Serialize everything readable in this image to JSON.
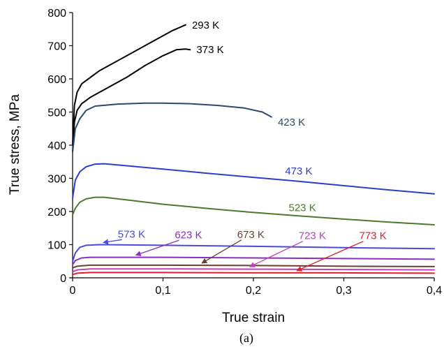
{
  "chart_data": {
    "type": "line",
    "xlabel": "True strain",
    "ylabel": "True stress, MPa",
    "caption": "(a)",
    "xlim": [
      0,
      0.4
    ],
    "ylim": [
      0,
      800
    ],
    "xticks": [
      "0",
      "0,1",
      "0,2",
      "0,3",
      "0,4"
    ],
    "yticks": [
      "0",
      "100",
      "200",
      "300",
      "400",
      "500",
      "600",
      "700",
      "800"
    ],
    "grid": false,
    "legend": "none",
    "series": [
      {
        "name": "293 K",
        "color": "#000000",
        "x": [
          0,
          0.002,
          0.005,
          0.01,
          0.02,
          0.03,
          0.05,
          0.07,
          0.09,
          0.11,
          0.125
        ],
        "y": [
          400,
          520,
          560,
          585,
          605,
          625,
          655,
          685,
          715,
          745,
          763
        ]
      },
      {
        "name": "373 K",
        "color": "#000000",
        "x": [
          0,
          0.002,
          0.005,
          0.01,
          0.02,
          0.04,
          0.06,
          0.08,
          0.1,
          0.115,
          0.125,
          0.13
        ],
        "y": [
          380,
          470,
          505,
          525,
          545,
          575,
          605,
          640,
          670,
          688,
          690,
          688
        ]
      },
      {
        "name": "423 K",
        "color": "#2a4a6e",
        "x": [
          0,
          0.003,
          0.008,
          0.015,
          0.025,
          0.05,
          0.08,
          0.1,
          0.13,
          0.16,
          0.19,
          0.21,
          0.22
        ],
        "y": [
          380,
          450,
          480,
          505,
          518,
          524,
          527,
          527,
          525,
          520,
          512,
          500,
          485
        ]
      },
      {
        "name": "473 K",
        "color": "#2b3ec8",
        "x": [
          0,
          0.003,
          0.008,
          0.015,
          0.025,
          0.035,
          0.06,
          0.1,
          0.15,
          0.2,
          0.25,
          0.3,
          0.35,
          0.4
        ],
        "y": [
          240,
          295,
          320,
          335,
          343,
          344,
          338,
          328,
          315,
          303,
          291,
          278,
          265,
          253
        ]
      },
      {
        "name": "523 K",
        "color": "#4b7a28",
        "x": [
          0,
          0.003,
          0.008,
          0.015,
          0.025,
          0.035,
          0.06,
          0.1,
          0.15,
          0.2,
          0.25,
          0.3,
          0.35,
          0.4
        ],
        "y": [
          190,
          210,
          228,
          238,
          243,
          243,
          235,
          222,
          209,
          197,
          187,
          177,
          168,
          160
        ]
      },
      {
        "name": "573 K",
        "color": "#4a4adc",
        "x": [
          0,
          0.003,
          0.008,
          0.015,
          0.03,
          0.1,
          0.2,
          0.3,
          0.4
        ],
        "y": [
          50,
          75,
          92,
          98,
          100,
          98,
          95,
          91,
          88
        ]
      },
      {
        "name": "623 K",
        "color": "#8a2fc0",
        "x": [
          0,
          0.003,
          0.01,
          0.02,
          0.1,
          0.2,
          0.3,
          0.4
        ],
        "y": [
          40,
          52,
          60,
          62,
          62,
          60,
          58,
          56
        ]
      },
      {
        "name": "673 K",
        "color": "#6a4030",
        "x": [
          0,
          0.005,
          0.02,
          0.1,
          0.2,
          0.3,
          0.4
        ],
        "y": [
          30,
          35,
          38,
          38,
          37,
          35,
          34
        ]
      },
      {
        "name": "723 K",
        "color": "#c040c0",
        "x": [
          0,
          0.005,
          0.02,
          0.1,
          0.2,
          0.3,
          0.4
        ],
        "y": [
          18,
          24,
          27,
          27,
          26,
          25,
          24
        ]
      },
      {
        "name": "773 K",
        "color": "#e0202a",
        "x": [
          0,
          0.005,
          0.02,
          0.1,
          0.2,
          0.3,
          0.4
        ],
        "y": [
          10,
          14,
          16,
          16,
          15,
          15,
          14
        ]
      }
    ],
    "annotations": [
      {
        "series": "293 K",
        "text": "293 K",
        "text_x": 0.132,
        "text_y": 762,
        "arrow": false
      },
      {
        "series": "373 K",
        "text": "373 K",
        "text_x": 0.137,
        "text_y": 688,
        "arrow": false
      },
      {
        "series": "423 K",
        "text": "423 K",
        "text_x": 0.227,
        "text_y": 470,
        "arrow": false
      },
      {
        "series": "473 K",
        "text": "473 K",
        "text_x": 0.235,
        "text_y": 322,
        "arrow": false
      },
      {
        "series": "523 K",
        "text": "523 K",
        "text_x": 0.239,
        "text_y": 212,
        "arrow": false
      },
      {
        "series": "573 K",
        "text": "573 K",
        "text_x": 0.05,
        "text_y": 132,
        "arrow": true,
        "arrow_to_x": 0.034,
        "arrow_to_y": 100
      },
      {
        "series": "623 K",
        "text": "623 K",
        "text_x": 0.113,
        "text_y": 130,
        "arrow": true,
        "arrow_to_x": 0.07,
        "arrow_to_y": 62
      },
      {
        "series": "673 K",
        "text": "673 K",
        "text_x": 0.182,
        "text_y": 131,
        "arrow": true,
        "arrow_to_x": 0.143,
        "arrow_to_y": 38
      },
      {
        "series": "723 K",
        "text": "723 K",
        "text_x": 0.25,
        "text_y": 127,
        "arrow": true,
        "arrow_to_x": 0.196,
        "arrow_to_y": 27
      },
      {
        "series": "773 K",
        "text": "773 K",
        "text_x": 0.317,
        "text_y": 127,
        "arrow": true,
        "arrow_to_x": 0.248,
        "arrow_to_y": 15
      }
    ]
  }
}
